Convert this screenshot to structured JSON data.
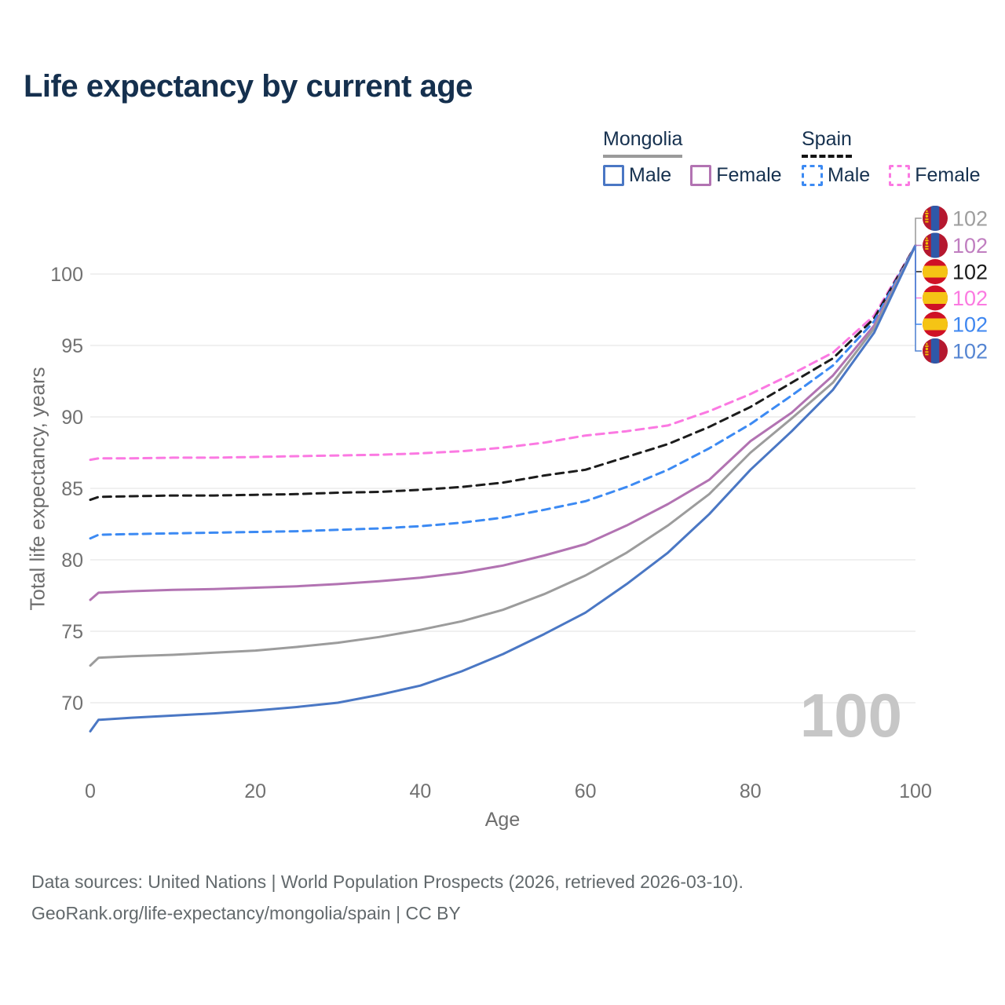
{
  "title": "Life expectancy by current age",
  "watermark": "100",
  "footer": {
    "line1": "Data sources: United Nations | World Population Prospects (2026, retrieved 2026-03-10).",
    "line2": "GeoRank.org/life-expectancy/mongolia/spain | CC BY"
  },
  "legend": {
    "groups": [
      {
        "country": "Mongolia",
        "underline_style": "solid",
        "underline_color": "#9a9a9a",
        "items": [
          {
            "label": "Male",
            "color": "#4a77c4",
            "dashed": false
          },
          {
            "label": "Female",
            "color": "#b273b2",
            "dashed": false
          }
        ]
      },
      {
        "country": "Spain",
        "underline_style": "dashed",
        "underline_color": "#141414",
        "items": [
          {
            "label": "Male",
            "color": "#3c8af3",
            "dashed": true
          },
          {
            "label": "Female",
            "color": "#fb79e2",
            "dashed": true
          }
        ]
      }
    ]
  },
  "chart_data": {
    "type": "line",
    "title": "Life expectancy by current age",
    "xlabel": "Age",
    "ylabel": "Total life expectancy, years",
    "x_ticks": [
      0,
      20,
      40,
      60,
      80,
      100
    ],
    "y_ticks": [
      70,
      75,
      80,
      85,
      90,
      95,
      100
    ],
    "xlim": [
      0,
      100
    ],
    "ylim": [
      66.5,
      102.5
    ],
    "grid": "horizontal",
    "legend_position": "top-right",
    "x": [
      0,
      1,
      5,
      10,
      15,
      20,
      25,
      30,
      35,
      40,
      45,
      50,
      55,
      60,
      65,
      70,
      75,
      80,
      85,
      90,
      95,
      100
    ],
    "series": [
      {
        "id": "spain-female",
        "name": "Spain Female",
        "country": "Spain",
        "sex": "Female",
        "color": "#fb79e2",
        "dash": "dashed",
        "values": [
          87.0,
          87.1,
          87.1,
          87.15,
          87.15,
          87.2,
          87.25,
          87.3,
          87.35,
          87.45,
          87.6,
          87.85,
          88.2,
          88.7,
          89.0,
          89.4,
          90.4,
          91.6,
          93.0,
          94.5,
          97.1,
          102
        ]
      },
      {
        "id": "spain-both",
        "name": "Spain",
        "country": "Spain",
        "sex": "Both",
        "color": "#1c1c1c",
        "dash": "dashed",
        "values": [
          84.2,
          84.4,
          84.45,
          84.5,
          84.5,
          84.55,
          84.6,
          84.7,
          84.75,
          84.9,
          85.1,
          85.4,
          85.9,
          86.3,
          87.2,
          88.1,
          89.3,
          90.7,
          92.4,
          94.1,
          96.9,
          102
        ]
      },
      {
        "id": "spain-male",
        "name": "Spain Male",
        "country": "Spain",
        "sex": "Male",
        "color": "#3c8af3",
        "dash": "dashed",
        "values": [
          81.5,
          81.75,
          81.8,
          81.85,
          81.9,
          81.95,
          82.0,
          82.1,
          82.2,
          82.35,
          82.6,
          82.95,
          83.5,
          84.1,
          85.1,
          86.3,
          87.8,
          89.5,
          91.5,
          93.6,
          96.7,
          102
        ]
      },
      {
        "id": "mongolia-female",
        "name": "Mongolia Female",
        "country": "Mongolia",
        "sex": "Female",
        "color": "#b273b2",
        "dash": "solid",
        "values": [
          77.2,
          77.7,
          77.8,
          77.9,
          77.95,
          78.05,
          78.15,
          78.3,
          78.5,
          78.75,
          79.1,
          79.6,
          80.3,
          81.1,
          82.4,
          83.9,
          85.6,
          88.3,
          90.3,
          92.9,
          96.4,
          102
        ]
      },
      {
        "id": "mongolia-both",
        "name": "Mongolia",
        "country": "Mongolia",
        "sex": "Both",
        "color": "#9c9c9c",
        "dash": "solid",
        "values": [
          72.6,
          73.15,
          73.25,
          73.35,
          73.5,
          73.65,
          73.9,
          74.2,
          74.6,
          75.1,
          75.7,
          76.5,
          77.6,
          78.9,
          80.5,
          82.4,
          84.6,
          87.5,
          89.9,
          92.4,
          96.2,
          102
        ]
      },
      {
        "id": "mongolia-male",
        "name": "Mongolia Male",
        "country": "Mongolia",
        "sex": "Male",
        "color": "#4a77c4",
        "dash": "solid",
        "values": [
          68.0,
          68.8,
          68.95,
          69.1,
          69.25,
          69.45,
          69.7,
          70.0,
          70.55,
          71.2,
          72.2,
          73.4,
          74.8,
          76.3,
          78.3,
          80.5,
          83.2,
          86.3,
          89.0,
          91.9,
          95.9,
          102
        ]
      }
    ],
    "end_labels": [
      {
        "flag": "mongolia-flag-icon",
        "value": "102",
        "color": "#9e9e9e",
        "series": "Mongolia"
      },
      {
        "flag": "mongolia-flag-icon",
        "value": "102",
        "color": "#c07ec0",
        "series": "Mongolia Female"
      },
      {
        "flag": "spain-flag-icon",
        "value": "102",
        "color": "#1b1b1b",
        "series": "Spain"
      },
      {
        "flag": "spain-flag-icon",
        "value": "102",
        "color": "#fb7ae1",
        "series": "Spain Female"
      },
      {
        "flag": "spain-flag-icon",
        "value": "102",
        "color": "#3f87f0",
        "series": "Spain Male"
      },
      {
        "flag": "mongolia-flag-icon",
        "value": "102",
        "color": "#5585d2",
        "series": "Mongolia Male"
      }
    ]
  },
  "colors": {
    "title_text": "#15304e",
    "legend_text": "#16314f",
    "grid": "#ececec",
    "tick_text": "#717171",
    "axis_label_text": "#6e6e6e",
    "watermark": "#c6c6c6",
    "footer_text": "#62696c",
    "mongolia_flag_red": "#b5182f",
    "mongolia_flag_blue": "#2e58a8",
    "mongolia_flag_yellow": "#f2c500",
    "spain_flag_red": "#cf1126",
    "spain_flag_yellow": "#f5c415"
  }
}
